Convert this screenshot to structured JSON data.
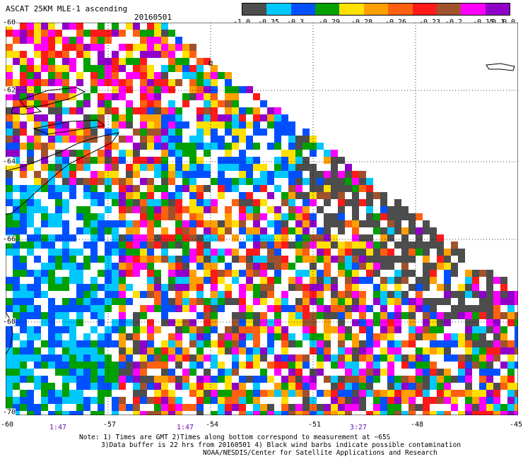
{
  "header": {
    "title": "ASCAT 25KM MLE-1 ascending",
    "date": "20160501"
  },
  "colorbar": {
    "colors": [
      "#4d4d4d",
      "#00c8ff",
      "#0050ff",
      "#00a000",
      "#ffe000",
      "#ffa000",
      "#ff6010",
      "#ff1a1a",
      "#a0522d",
      "#ff00ff",
      "#9000c8"
    ],
    "labels": [
      "-1.0",
      "-0.35",
      "-0.3",
      "-0.29",
      "-0.28",
      "-0.26",
      "-0.23",
      "-0.2",
      "-0.15",
      "-0.1",
      "0.0"
    ]
  },
  "axes": {
    "lat_labels": [
      "-60",
      "-62",
      "-64",
      "-66",
      "-68",
      "-70"
    ],
    "lon_labels": [
      "-60",
      "-57",
      "-54",
      "-51",
      "-48",
      "-45"
    ]
  },
  "times": [
    "1:47",
    "1:47",
    "3:27"
  ],
  "footnote": [
    "Note: 1) Times are GMT 2)Times along bottom correspond to measurement at ~65S",
    "3)Data buffer is 22 hrs from 20160501 4) Black wind barbs indicate possible contamination",
    "NOAA/NESDIS/Center for Satellite Applications and Research"
  ]
}
